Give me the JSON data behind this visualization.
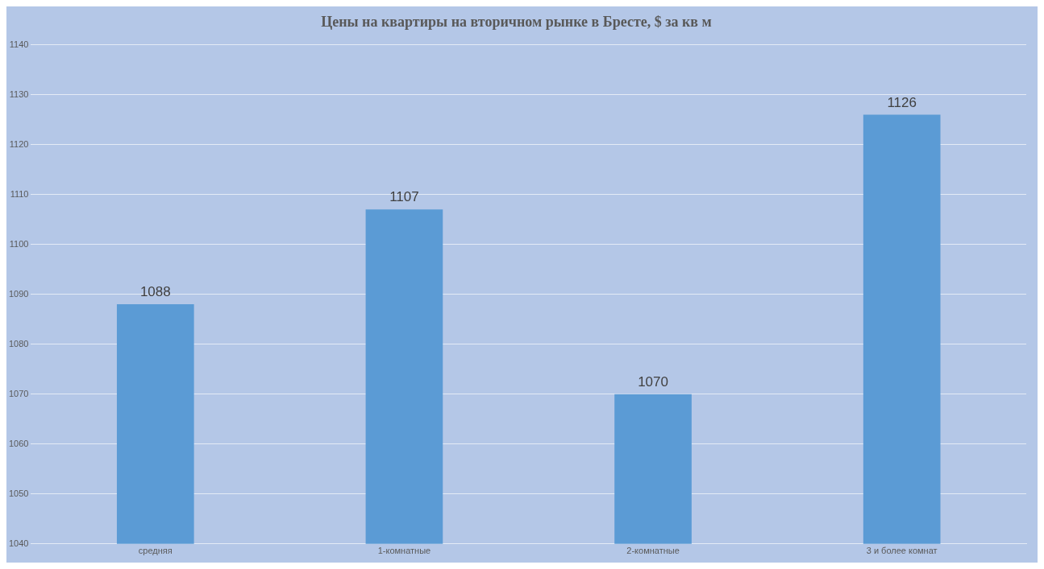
{
  "chart_data": {
    "type": "bar",
    "title": "Цены на квартиры на вторичном рынке в Бресте, $ за кв м",
    "categories": [
      "средняя",
      "1-комнатные",
      "2-комнатные",
      "3 и более комнат"
    ],
    "values": [
      1088,
      1107,
      1070,
      1126
    ],
    "color": "#5b9bd5",
    "ylim": [
      1040,
      1140
    ],
    "yticks": [
      1040,
      1050,
      1060,
      1070,
      1080,
      1090,
      1100,
      1110,
      1120,
      1130,
      1140
    ],
    "grid": "y",
    "data_labels": true
  }
}
